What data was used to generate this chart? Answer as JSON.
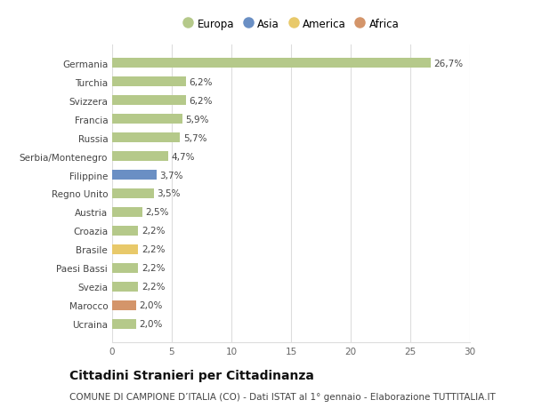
{
  "categories": [
    "Ucraina",
    "Marocco",
    "Svezia",
    "Paesi Bassi",
    "Brasile",
    "Croazia",
    "Austria",
    "Regno Unito",
    "Filippine",
    "Serbia/Montenegro",
    "Russia",
    "Francia",
    "Svizzera",
    "Turchia",
    "Germania"
  ],
  "values": [
    2.0,
    2.0,
    2.2,
    2.2,
    2.2,
    2.2,
    2.5,
    3.5,
    3.7,
    4.7,
    5.7,
    5.9,
    6.2,
    6.2,
    26.7
  ],
  "labels": [
    "2,0%",
    "2,0%",
    "2,2%",
    "2,2%",
    "2,2%",
    "2,2%",
    "2,5%",
    "3,5%",
    "3,7%",
    "4,7%",
    "5,7%",
    "5,9%",
    "6,2%",
    "6,2%",
    "26,7%"
  ],
  "colors": [
    "#b5c98a",
    "#d4956a",
    "#b5c98a",
    "#b5c98a",
    "#e8c96a",
    "#b5c98a",
    "#b5c98a",
    "#b5c98a",
    "#6a8fc4",
    "#b5c98a",
    "#b5c98a",
    "#b5c98a",
    "#b5c98a",
    "#b5c98a",
    "#b5c98a"
  ],
  "legend_items": [
    {
      "label": "Europa",
      "color": "#b5c98a"
    },
    {
      "label": "Asia",
      "color": "#6a8fc4"
    },
    {
      "label": "America",
      "color": "#e8c96a"
    },
    {
      "label": "Africa",
      "color": "#d4956a"
    }
  ],
  "title": "Cittadini Stranieri per Cittadinanza",
  "subtitle": "COMUNE DI CAMPIONE D’ITALIA (CO) - Dati ISTAT al 1° gennaio - Elaborazione TUTTITALIA.IT",
  "xlim": [
    0,
    30
  ],
  "xticks": [
    0,
    5,
    10,
    15,
    20,
    25,
    30
  ],
  "background_color": "#ffffff",
  "grid_color": "#dddddd",
  "bar_height": 0.55,
  "title_fontsize": 10,
  "subtitle_fontsize": 7.5,
  "label_fontsize": 7.5,
  "tick_fontsize": 7.5,
  "legend_fontsize": 8.5
}
